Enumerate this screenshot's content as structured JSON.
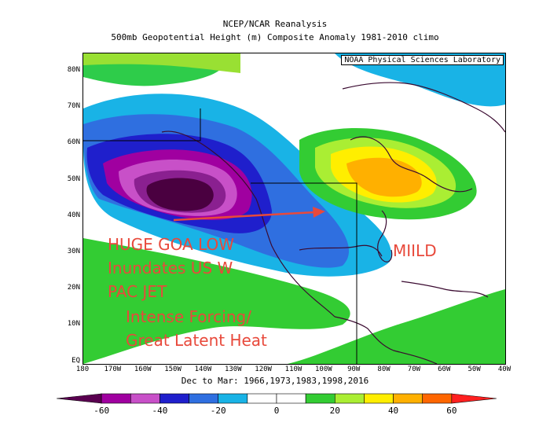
{
  "header": {
    "line1": "NCEP/NCAR Reanalysis",
    "line2": "500mb Geopotential Height (m) Composite Anomaly 1981-2010 climo"
  },
  "map": {
    "credit": "NOAA Physical Sciences Laboratory",
    "lat_labels": [
      "80N",
      "70N",
      "60N",
      "50N",
      "40N",
      "30N",
      "20N",
      "10N",
      "EQ"
    ],
    "lon_labels": [
      "180",
      "170W",
      "160W",
      "150W",
      "140W",
      "130W",
      "120W",
      "110W",
      "100W",
      "90W",
      "80W",
      "70W",
      "60W",
      "50W",
      "40W"
    ],
    "date_line": "Dec to Mar: 1966,1973,1983,1998,2016",
    "anomaly_low_center": {
      "lat": 45,
      "lon": -150,
      "min_value": -60
    },
    "anomaly_high_center": {
      "lat": 50,
      "lon": -77,
      "max_value": 40
    }
  },
  "annotations": {
    "goa_low": "HUGE GOA LOW",
    "inundates": "Inundates US W",
    "pac_jet": "PAC JET",
    "forcing": "Intense Forcing/",
    "latent": "Great Latent Heat",
    "mild": "MIILD"
  },
  "colorbar": {
    "labels": [
      "-60",
      "-40",
      "-20",
      "0",
      "20",
      "40",
      "60"
    ],
    "colors": [
      "#5a0050",
      "#a000a0",
      "#c850c8",
      "#1f1fcc",
      "#2f6fe0",
      "#19b3e6",
      "#ffffff",
      "#ffffff",
      "#33cc33",
      "#aaee33",
      "#ffee00",
      "#ffb000",
      "#ff6600",
      "#ff2020"
    ]
  },
  "colors": {
    "annotation": "#e8493b",
    "arrow": "#e8493b"
  }
}
